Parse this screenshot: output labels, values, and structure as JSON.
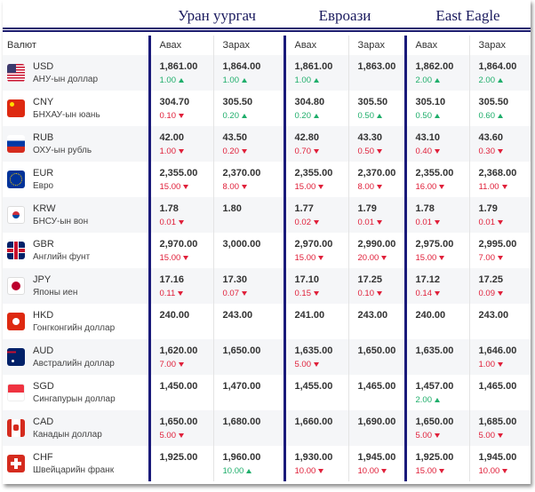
{
  "banks": [
    "Уран уургач",
    "Евроази",
    "East Eagle"
  ],
  "headers": {
    "currency": "Валют",
    "buy": "Авах",
    "sell": "Зарах"
  },
  "colors": {
    "up": "#1fae6b",
    "down": "#e0203a",
    "divider": "#1a1a7a"
  },
  "rows": [
    {
      "code": "USD",
      "name": "АНУ-ын доллар",
      "flag": "us-flag-icon",
      "rates": [
        {
          "v": "1,861.00",
          "c": "1.00",
          "d": "up"
        },
        {
          "v": "1,864.00",
          "c": "1.00",
          "d": "up"
        },
        {
          "v": "1,861.00",
          "c": "1.00",
          "d": "up"
        },
        {
          "v": "1,863.00"
        },
        {
          "v": "1,862.00",
          "c": "2.00",
          "d": "up"
        },
        {
          "v": "1,864.00",
          "c": "2.00",
          "d": "up"
        }
      ]
    },
    {
      "code": "CNY",
      "name": "БНХАУ-ын юань",
      "flag": "cn-flag-icon",
      "rates": [
        {
          "v": "304.70",
          "c": "0.10",
          "d": "down"
        },
        {
          "v": "305.50",
          "c": "0.20",
          "d": "up"
        },
        {
          "v": "304.80",
          "c": "0.20",
          "d": "up"
        },
        {
          "v": "305.50",
          "c": "0.50",
          "d": "up"
        },
        {
          "v": "305.10",
          "c": "0.50",
          "d": "up"
        },
        {
          "v": "305.50",
          "c": "0.60",
          "d": "up"
        }
      ]
    },
    {
      "code": "RUB",
      "name": "ОХУ-ын рубль",
      "flag": "ru-flag-icon",
      "rates": [
        {
          "v": "42.00",
          "c": "1.00",
          "d": "down"
        },
        {
          "v": "43.50",
          "c": "0.20",
          "d": "down"
        },
        {
          "v": "42.80",
          "c": "0.70",
          "d": "down"
        },
        {
          "v": "43.30",
          "c": "0.50",
          "d": "down"
        },
        {
          "v": "43.10",
          "c": "0.40",
          "d": "down"
        },
        {
          "v": "43.60",
          "c": "0.30",
          "d": "down"
        }
      ]
    },
    {
      "code": "EUR",
      "name": "Евро",
      "flag": "eu-flag-icon",
      "rates": [
        {
          "v": "2,355.00",
          "c": "15.00",
          "d": "down"
        },
        {
          "v": "2,370.00",
          "c": "8.00",
          "d": "down"
        },
        {
          "v": "2,355.00",
          "c": "15.00",
          "d": "down"
        },
        {
          "v": "2,370.00",
          "c": "8.00",
          "d": "down"
        },
        {
          "v": "2,355.00",
          "c": "16.00",
          "d": "down"
        },
        {
          "v": "2,368.00",
          "c": "11.00",
          "d": "down"
        }
      ]
    },
    {
      "code": "KRW",
      "name": "БНСУ-ын вон",
      "flag": "kr-flag-icon",
      "rates": [
        {
          "v": "1.78",
          "c": "0.01",
          "d": "down"
        },
        {
          "v": "1.80"
        },
        {
          "v": "1.77",
          "c": "0.02",
          "d": "down"
        },
        {
          "v": "1.79",
          "c": "0.01",
          "d": "down"
        },
        {
          "v": "1.78",
          "c": "0.01",
          "d": "down"
        },
        {
          "v": "1.79",
          "c": "0.01",
          "d": "down"
        }
      ]
    },
    {
      "code": "GBR",
      "name": "Английн фунт",
      "flag": "gb-flag-icon",
      "rates": [
        {
          "v": "2,970.00",
          "c": "15.00",
          "d": "down"
        },
        {
          "v": "3,000.00"
        },
        {
          "v": "2,970.00",
          "c": "15.00",
          "d": "down"
        },
        {
          "v": "2,990.00",
          "c": "20.00",
          "d": "down"
        },
        {
          "v": "2,975.00",
          "c": "15.00",
          "d": "down"
        },
        {
          "v": "2,995.00",
          "c": "7.00",
          "d": "down"
        }
      ]
    },
    {
      "code": "JPY",
      "name": "Японы иен",
      "flag": "jp-flag-icon",
      "rates": [
        {
          "v": "17.16",
          "c": "0.11",
          "d": "down"
        },
        {
          "v": "17.30",
          "c": "0.07",
          "d": "down"
        },
        {
          "v": "17.10",
          "c": "0.15",
          "d": "down"
        },
        {
          "v": "17.25",
          "c": "0.10",
          "d": "down"
        },
        {
          "v": "17.12",
          "c": "0.14",
          "d": "down"
        },
        {
          "v": "17.25",
          "c": "0.09",
          "d": "down"
        }
      ]
    },
    {
      "code": "HKD",
      "name": "Гонгконгийн доллар",
      "flag": "hk-flag-icon",
      "rates": [
        {
          "v": "240.00"
        },
        {
          "v": "243.00"
        },
        {
          "v": "241.00"
        },
        {
          "v": "243.00"
        },
        {
          "v": "240.00"
        },
        {
          "v": "243.00"
        }
      ]
    },
    {
      "code": "AUD",
      "name": "Австралийн доллар",
      "flag": "au-flag-icon",
      "rates": [
        {
          "v": "1,620.00",
          "c": "7.00",
          "d": "down"
        },
        {
          "v": "1,650.00"
        },
        {
          "v": "1,635.00",
          "c": "5.00",
          "d": "down"
        },
        {
          "v": "1,650.00"
        },
        {
          "v": "1,635.00"
        },
        {
          "v": "1,646.00",
          "c": "1.00",
          "d": "down"
        }
      ]
    },
    {
      "code": "SGD",
      "name": "Сингапурын доллар",
      "flag": "sg-flag-icon",
      "rates": [
        {
          "v": "1,450.00"
        },
        {
          "v": "1,470.00"
        },
        {
          "v": "1,455.00"
        },
        {
          "v": "1,465.00"
        },
        {
          "v": "1,457.00",
          "c": "2.00",
          "d": "up"
        },
        {
          "v": "1,465.00"
        }
      ]
    },
    {
      "code": "CAD",
      "name": "Канадын доллар",
      "flag": "ca-flag-icon",
      "rates": [
        {
          "v": "1,650.00",
          "c": "5.00",
          "d": "down"
        },
        {
          "v": "1,680.00"
        },
        {
          "v": "1,660.00"
        },
        {
          "v": "1,690.00"
        },
        {
          "v": "1,650.00",
          "c": "5.00",
          "d": "down"
        },
        {
          "v": "1,685.00",
          "c": "5.00",
          "d": "down"
        }
      ]
    },
    {
      "code": "CHF",
      "name": "Швейцарийн франк",
      "flag": "ch-flag-icon",
      "rates": [
        {
          "v": "1,925.00"
        },
        {
          "v": "1,960.00",
          "c": "10.00",
          "d": "up"
        },
        {
          "v": "1,930.00",
          "c": "10.00",
          "d": "down"
        },
        {
          "v": "1,945.00",
          "c": "10.00",
          "d": "down"
        },
        {
          "v": "1,925.00",
          "c": "15.00",
          "d": "down"
        },
        {
          "v": "1,945.00",
          "c": "10.00",
          "d": "down"
        }
      ]
    }
  ]
}
